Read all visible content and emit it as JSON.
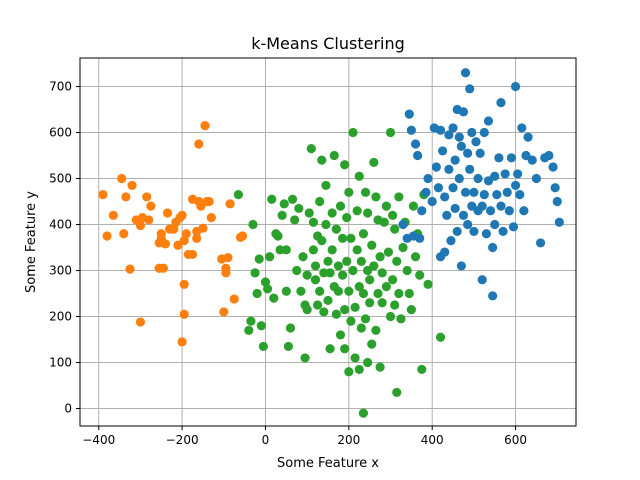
{
  "chart_data": {
    "type": "scatter",
    "title": "k-Means Clustering",
    "xlabel": "Some Feature x",
    "ylabel": "Some Feature y",
    "xlim": [
      -445,
      745
    ],
    "ylim": [
      -38,
      762
    ],
    "xticks": [
      -400,
      -200,
      0,
      200,
      400,
      600
    ],
    "yticks": [
      0,
      100,
      200,
      300,
      400,
      500,
      600,
      700
    ],
    "grid": true,
    "series": [
      {
        "color": "#ff7f0e",
        "points": [
          [
            -390,
            465
          ],
          [
            -380,
            375
          ],
          [
            -365,
            420
          ],
          [
            -345,
            500
          ],
          [
            -340,
            380
          ],
          [
            -335,
            460
          ],
          [
            -325,
            303
          ],
          [
            -320,
            485
          ],
          [
            -310,
            410
          ],
          [
            -300,
            188
          ],
          [
            -300,
            398
          ],
          [
            -295,
            415
          ],
          [
            -285,
            460
          ],
          [
            -280,
            410
          ],
          [
            -275,
            440
          ],
          [
            -255,
            360
          ],
          [
            -255,
            305
          ],
          [
            -250,
            370
          ],
          [
            -250,
            380
          ],
          [
            -245,
            305
          ],
          [
            -240,
            358
          ],
          [
            -235,
            425
          ],
          [
            -230,
            390
          ],
          [
            -220,
            390
          ],
          [
            -215,
            405
          ],
          [
            -210,
            355
          ],
          [
            -205,
            415
          ],
          [
            -200,
            145
          ],
          [
            -200,
            420
          ],
          [
            -195,
            365
          ],
          [
            -195,
            270
          ],
          [
            -195,
            205
          ],
          [
            -190,
            380
          ],
          [
            -185,
            335
          ],
          [
            -175,
            335
          ],
          [
            -175,
            455
          ],
          [
            -165,
            370
          ],
          [
            -165,
            385
          ],
          [
            -160,
            575
          ],
          [
            -160,
            450
          ],
          [
            -155,
            440
          ],
          [
            -150,
            392
          ],
          [
            -145,
            615
          ],
          [
            -140,
            450
          ],
          [
            -135,
            450
          ],
          [
            -130,
            415
          ],
          [
            -105,
            325
          ],
          [
            -100,
            210
          ],
          [
            -95,
            305
          ],
          [
            -95,
            295
          ],
          [
            -90,
            328
          ],
          [
            -85,
            445
          ],
          [
            -75,
            238
          ],
          [
            -60,
            372
          ],
          [
            -55,
            375
          ]
        ]
      },
      {
        "color": "#2ca02c",
        "points": [
          [
            -65,
            465
          ],
          [
            -40,
            170
          ],
          [
            -35,
            190
          ],
          [
            -30,
            400
          ],
          [
            -25,
            295
          ],
          [
            -20,
            250
          ],
          [
            -15,
            325
          ],
          [
            -10,
            180
          ],
          [
            -5,
            135
          ],
          [
            0,
            275
          ],
          [
            5,
            260
          ],
          [
            10,
            330
          ],
          [
            15,
            455
          ],
          [
            20,
            240
          ],
          [
            25,
            380
          ],
          [
            30,
            375
          ],
          [
            35,
            345
          ],
          [
            40,
            420
          ],
          [
            45,
            445
          ],
          [
            50,
            345
          ],
          [
            50,
            255
          ],
          [
            55,
            135
          ],
          [
            60,
            175
          ],
          [
            65,
            455
          ],
          [
            70,
            410
          ],
          [
            75,
            300
          ],
          [
            80,
            435
          ],
          [
            85,
            255
          ],
          [
            90,
            330
          ],
          [
            95,
            110
          ],
          [
            95,
            225
          ],
          [
            100,
            290
          ],
          [
            100,
            215
          ],
          [
            105,
            425
          ],
          [
            110,
            565
          ],
          [
            115,
            345
          ],
          [
            115,
            405
          ],
          [
            120,
            280
          ],
          [
            120,
            310
          ],
          [
            125,
            375
          ],
          [
            125,
            225
          ],
          [
            130,
            450
          ],
          [
            130,
            255
          ],
          [
            135,
            540
          ],
          [
            135,
            365
          ],
          [
            140,
            295
          ],
          [
            140,
            210
          ],
          [
            145,
            485
          ],
          [
            145,
            400
          ],
          [
            150,
            320
          ],
          [
            150,
            235
          ],
          [
            155,
            130
          ],
          [
            155,
            295
          ],
          [
            160,
            425
          ],
          [
            160,
            345
          ],
          [
            165,
            550
          ],
          [
            165,
            265
          ],
          [
            170,
            205
          ],
          [
            170,
            390
          ],
          [
            175,
            310
          ],
          [
            175,
            255
          ],
          [
            180,
            440
          ],
          [
            180,
            160
          ],
          [
            185,
            370
          ],
          [
            185,
            290
          ],
          [
            190,
            530
          ],
          [
            190,
            215
          ],
          [
            195,
            415
          ],
          [
            195,
            320
          ],
          [
            200,
            470
          ],
          [
            200,
            255
          ],
          [
            205,
            190
          ],
          [
            205,
            370
          ],
          [
            210,
            600
          ],
          [
            210,
            300
          ],
          [
            215,
            220
          ],
          [
            215,
            110
          ],
          [
            220,
            430
          ],
          [
            220,
            345
          ],
          [
            225,
            265
          ],
          [
            225,
            505
          ],
          [
            230,
            175
          ],
          [
            230,
            320
          ],
          [
            235,
            250
          ],
          [
            235,
            380
          ],
          [
            240,
            470
          ],
          [
            240,
            195
          ],
          [
            245,
            300
          ],
          [
            245,
            425
          ],
          [
            250,
            280
          ],
          [
            250,
            230
          ],
          [
            255,
            355
          ],
          [
            255,
            140
          ],
          [
            260,
            535
          ],
          [
            260,
            310
          ],
          [
            265,
            460
          ],
          [
            265,
            170
          ],
          [
            270,
            250
          ],
          [
            270,
            410
          ],
          [
            275,
            90
          ],
          [
            275,
            330
          ],
          [
            280,
            230
          ],
          [
            280,
            295
          ],
          [
            285,
            405
          ],
          [
            290,
            440
          ],
          [
            290,
            265
          ],
          [
            295,
            340
          ],
          [
            300,
            600
          ],
          [
            300,
            200
          ],
          [
            305,
            420
          ],
          [
            305,
            280
          ],
          [
            310,
            390
          ],
          [
            310,
            225
          ],
          [
            315,
            35
          ],
          [
            315,
            320
          ],
          [
            320,
            460
          ],
          [
            320,
            250
          ],
          [
            325,
            195
          ],
          [
            330,
            350
          ],
          [
            335,
            405
          ],
          [
            340,
            300
          ],
          [
            345,
            250
          ],
          [
            350,
            215
          ],
          [
            355,
            440
          ],
          [
            360,
            330
          ],
          [
            365,
            380
          ],
          [
            370,
            290
          ],
          [
            375,
            85
          ],
          [
            380,
            465
          ],
          [
            390,
            270
          ],
          [
            420,
            155
          ],
          [
            235,
            -10
          ],
          [
            200,
            80
          ],
          [
            225,
            85
          ],
          [
            190,
            130
          ],
          [
            245,
            100
          ]
        ]
      },
      {
        "color": "#1f77b4",
        "points": [
          [
            330,
            400
          ],
          [
            340,
            370
          ],
          [
            345,
            640
          ],
          [
            350,
            605
          ],
          [
            355,
            375
          ],
          [
            360,
            575
          ],
          [
            365,
            550
          ],
          [
            370,
            370
          ],
          [
            375,
            430
          ],
          [
            385,
            470
          ],
          [
            390,
            500
          ],
          [
            400,
            450
          ],
          [
            405,
            610
          ],
          [
            410,
            525
          ],
          [
            415,
            480
          ],
          [
            420,
            330
          ],
          [
            420,
            605
          ],
          [
            425,
            560
          ],
          [
            430,
            340
          ],
          [
            430,
            460
          ],
          [
            435,
            420
          ],
          [
            440,
            595
          ],
          [
            440,
            520
          ],
          [
            445,
            365
          ],
          [
            450,
            610
          ],
          [
            450,
            480
          ],
          [
            455,
            540
          ],
          [
            455,
            435
          ],
          [
            460,
            650
          ],
          [
            460,
            385
          ],
          [
            465,
            500
          ],
          [
            465,
            590
          ],
          [
            470,
            310
          ],
          [
            470,
            570
          ],
          [
            475,
            645
          ],
          [
            475,
            420
          ],
          [
            480,
            730
          ],
          [
            480,
            470
          ],
          [
            485,
            555
          ],
          [
            485,
            400
          ],
          [
            490,
            695
          ],
          [
            490,
            520
          ],
          [
            495,
            440
          ],
          [
            495,
            600
          ],
          [
            500,
            470
          ],
          [
            500,
            385
          ],
          [
            505,
            580
          ],
          [
            510,
            500
          ],
          [
            510,
            430
          ],
          [
            515,
            555
          ],
          [
            520,
            280
          ],
          [
            520,
            440
          ],
          [
            525,
            600
          ],
          [
            525,
            465
          ],
          [
            530,
            380
          ],
          [
            535,
            625
          ],
          [
            535,
            495
          ],
          [
            540,
            430
          ],
          [
            545,
            245
          ],
          [
            545,
            350
          ],
          [
            550,
            505
          ],
          [
            550,
            400
          ],
          [
            555,
            465
          ],
          [
            560,
            545
          ],
          [
            565,
            665
          ],
          [
            565,
            440
          ],
          [
            570,
            385
          ],
          [
            575,
            510
          ],
          [
            580,
            470
          ],
          [
            585,
            430
          ],
          [
            590,
            545
          ],
          [
            595,
            395
          ],
          [
            600,
            700
          ],
          [
            600,
            485
          ],
          [
            605,
            510
          ],
          [
            610,
            465
          ],
          [
            615,
            610
          ],
          [
            620,
            430
          ],
          [
            625,
            550
          ],
          [
            630,
            590
          ],
          [
            640,
            540
          ],
          [
            650,
            500
          ],
          [
            660,
            360
          ],
          [
            670,
            545
          ],
          [
            680,
            550
          ],
          [
            690,
            525
          ],
          [
            695,
            480
          ],
          [
            700,
            450
          ],
          [
            705,
            405
          ]
        ]
      }
    ]
  }
}
